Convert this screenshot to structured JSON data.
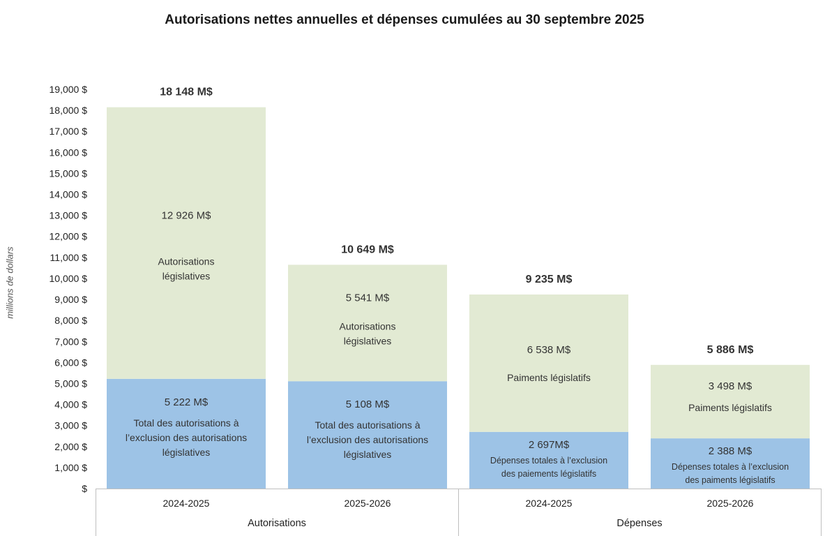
{
  "chart_data": {
    "type": "bar",
    "stacked": true,
    "title": "Autorisations nettes annuelles et dépenses cumulées au 30 septembre 2025",
    "ylabel": "millions de dollars",
    "ylim": [
      0,
      19000
    ],
    "yticks": [
      {
        "value": 0,
        "label": "$"
      },
      {
        "value": 1000,
        "label": "1,000 $"
      },
      {
        "value": 2000,
        "label": "2,000 $"
      },
      {
        "value": 3000,
        "label": "3,000 $"
      },
      {
        "value": 4000,
        "label": "4,000 $"
      },
      {
        "value": 5000,
        "label": "5,000 $"
      },
      {
        "value": 6000,
        "label": "6,000 $"
      },
      {
        "value": 7000,
        "label": "7,000 $"
      },
      {
        "value": 8000,
        "label": "8,000 $"
      },
      {
        "value": 9000,
        "label": "9,000 $"
      },
      {
        "value": 10000,
        "label": "10,000 $"
      },
      {
        "value": 11000,
        "label": "11,000 $"
      },
      {
        "value": 12000,
        "label": "12,000 $"
      },
      {
        "value": 13000,
        "label": "13,000 $"
      },
      {
        "value": 14000,
        "label": "14,000 $"
      },
      {
        "value": 15000,
        "label": "15,000 $"
      },
      {
        "value": 16000,
        "label": "16,000 $"
      },
      {
        "value": 17000,
        "label": "17,000 $"
      },
      {
        "value": 18000,
        "label": "18,000 $"
      },
      {
        "value": 19000,
        "label": "19,000 $"
      }
    ],
    "groups": [
      {
        "label": "Autorisations",
        "categories": [
          "2024-2025",
          "2025-2026"
        ]
      },
      {
        "label": "Dépenses",
        "categories": [
          "2024-2025",
          "2025-2026"
        ]
      }
    ],
    "bars": [
      {
        "category": "2024-2025",
        "group": "Autorisations",
        "total": 18148,
        "total_label": "18 148 M$",
        "segments": [
          {
            "value": 5222,
            "label": "5 222 M$",
            "desc": [
              "Total des autorisations à",
              "l’exclusion des autorisations",
              "législatives"
            ],
            "color": "#9dc3e6"
          },
          {
            "value": 12926,
            "label": "12 926 M$",
            "desc": [
              "Autorisations",
              "législatives"
            ],
            "color": "#e2ead3"
          }
        ]
      },
      {
        "category": "2025-2026",
        "group": "Autorisations",
        "total": 10649,
        "total_label": "10 649 M$",
        "segments": [
          {
            "value": 5108,
            "label": "5 108 M$",
            "desc": [
              "Total des autorisations à",
              "l’exclusion des autorisations",
              "législatives"
            ],
            "color": "#9dc3e6"
          },
          {
            "value": 5541,
            "label": "5 541 M$",
            "desc": [
              "Autorisations",
              "législatives"
            ],
            "color": "#e2ead3"
          }
        ]
      },
      {
        "category": "2024-2025",
        "group": "Dépenses",
        "total": 9235,
        "total_label": "9 235 M$",
        "segments": [
          {
            "value": 2697,
            "label": "2 697M$",
            "desc": [
              "Dépenses totales à l’exclusion",
              "des paiements législatifs"
            ],
            "color": "#9dc3e6"
          },
          {
            "value": 6538,
            "label": "6 538 M$",
            "desc": [
              "Paiments législatifs"
            ],
            "color": "#e2ead3"
          }
        ]
      },
      {
        "category": "2025-2026",
        "group": "Dépenses",
        "total": 5886,
        "total_label": "5 886 M$",
        "segments": [
          {
            "value": 2388,
            "label": "2 388 M$",
            "desc": [
              "Dépenses totales à l’exclusion",
              "des paiments législatifs"
            ],
            "color": "#9dc3e6"
          },
          {
            "value": 3498,
            "label": "3 498 M$",
            "desc": [
              "Paiments législatifs"
            ],
            "color": "#e2ead3"
          }
        ]
      }
    ],
    "grid": false,
    "legend": "none"
  }
}
